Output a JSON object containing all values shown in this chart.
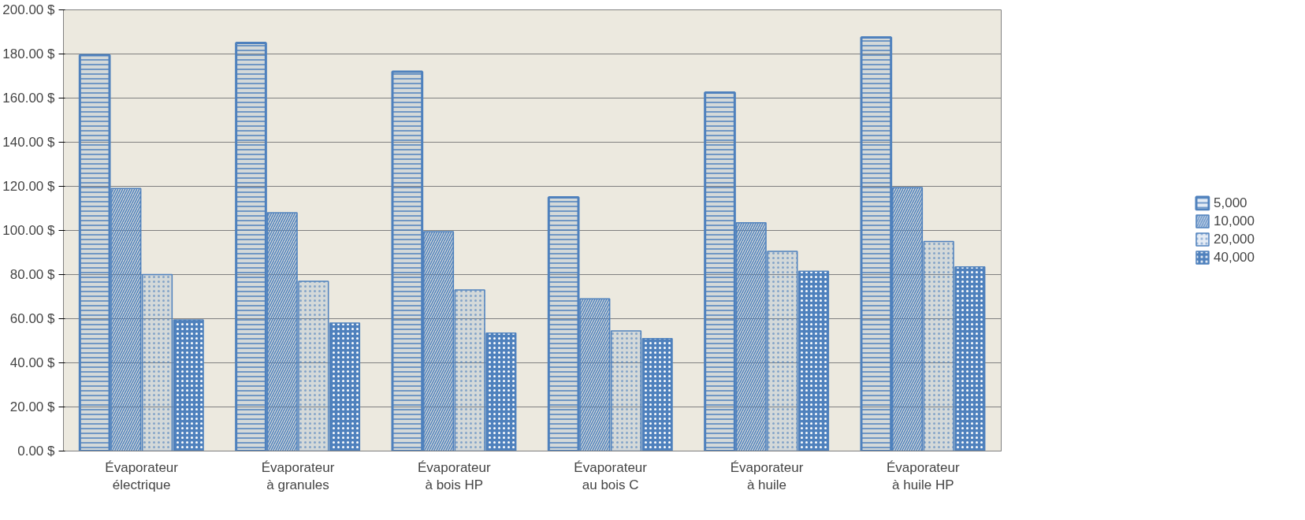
{
  "chart_data": {
    "type": "bar",
    "categories": [
      "Évaporateur électrique",
      "Évaporateur à granules",
      "Évaporateur à bois HP",
      "Évaporateur au bois C",
      "Évaporateur à huile",
      "Évaporateur à huile HP"
    ],
    "series": [
      {
        "name": "5,000",
        "color": "#4f81bd",
        "values": [
          179.5,
          185,
          172,
          115,
          162.5,
          187.5
        ]
      },
      {
        "name": "10,000",
        "color": "#4f81bd",
        "values": [
          119,
          108,
          99.5,
          69,
          103.5,
          119.5
        ]
      },
      {
        "name": "20,000",
        "color": "#4f81bd",
        "values": [
          80,
          77,
          73,
          54.5,
          90.5,
          95
        ]
      },
      {
        "name": "40,000",
        "color": "#4f81bd",
        "values": [
          59.5,
          58,
          53.5,
          51,
          81.5,
          83.5
        ]
      }
    ],
    "ylim": [
      0,
      200
    ],
    "yticks": [
      {
        "value": 0,
        "label": "0.00 $"
      },
      {
        "value": 20,
        "label": "20.00 $"
      },
      {
        "value": 40,
        "label": "40.00 $"
      },
      {
        "value": 60,
        "label": "60.00 $"
      },
      {
        "value": 80,
        "label": "80.00 $"
      },
      {
        "value": 100,
        "label": "100.00 $"
      },
      {
        "value": 120,
        "label": "120.00 $"
      },
      {
        "value": 140,
        "label": "140.00 $"
      },
      {
        "value": 160,
        "label": "160.00 $"
      },
      {
        "value": 180,
        "label": "180.00 $"
      },
      {
        "value": 200,
        "label": "200.00 $"
      }
    ],
    "grid": "y",
    "legend": "right"
  }
}
